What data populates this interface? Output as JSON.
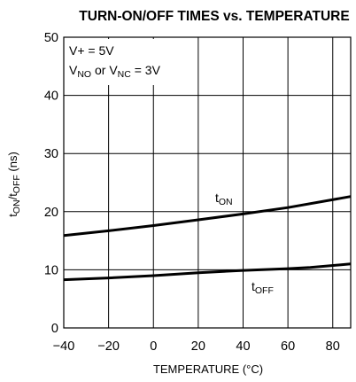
{
  "chart_data": {
    "type": "line",
    "title": "TURN-ON/OFF TIMES vs. TEMPERATURE",
    "xlabel": "TEMPERATURE (°C)",
    "ylabel": {
      "main": "t",
      "sub1": "ON",
      "mid": "/t",
      "sub2": "OFF",
      "unit": " (ns)"
    },
    "xlim": [
      -40,
      88
    ],
    "ylim": [
      0,
      50
    ],
    "x_ticks": [
      -40,
      -20,
      0,
      20,
      40,
      60,
      80
    ],
    "y_ticks": [
      0,
      10,
      20,
      30,
      40,
      50
    ],
    "grid": true,
    "annotations": {
      "line1": "V+ = 5V",
      "line2": {
        "v1": "V",
        "s1": "NO",
        "mid": " or V",
        "s2": "NC",
        "tail": " = 3V"
      }
    },
    "series": [
      {
        "name": "t",
        "name_sub": "ON",
        "x": [
          -40,
          -20,
          0,
          20,
          40,
          60,
          88
        ],
        "y": [
          15.9,
          16.7,
          17.6,
          18.6,
          19.6,
          20.7,
          22.6
        ]
      },
      {
        "name": "t",
        "name_sub": "OFF",
        "x": [
          -40,
          -20,
          0,
          20,
          40,
          60,
          70,
          88
        ],
        "y": [
          8.3,
          8.6,
          9.0,
          9.5,
          9.9,
          10.2,
          10.4,
          11.0
        ]
      }
    ]
  }
}
